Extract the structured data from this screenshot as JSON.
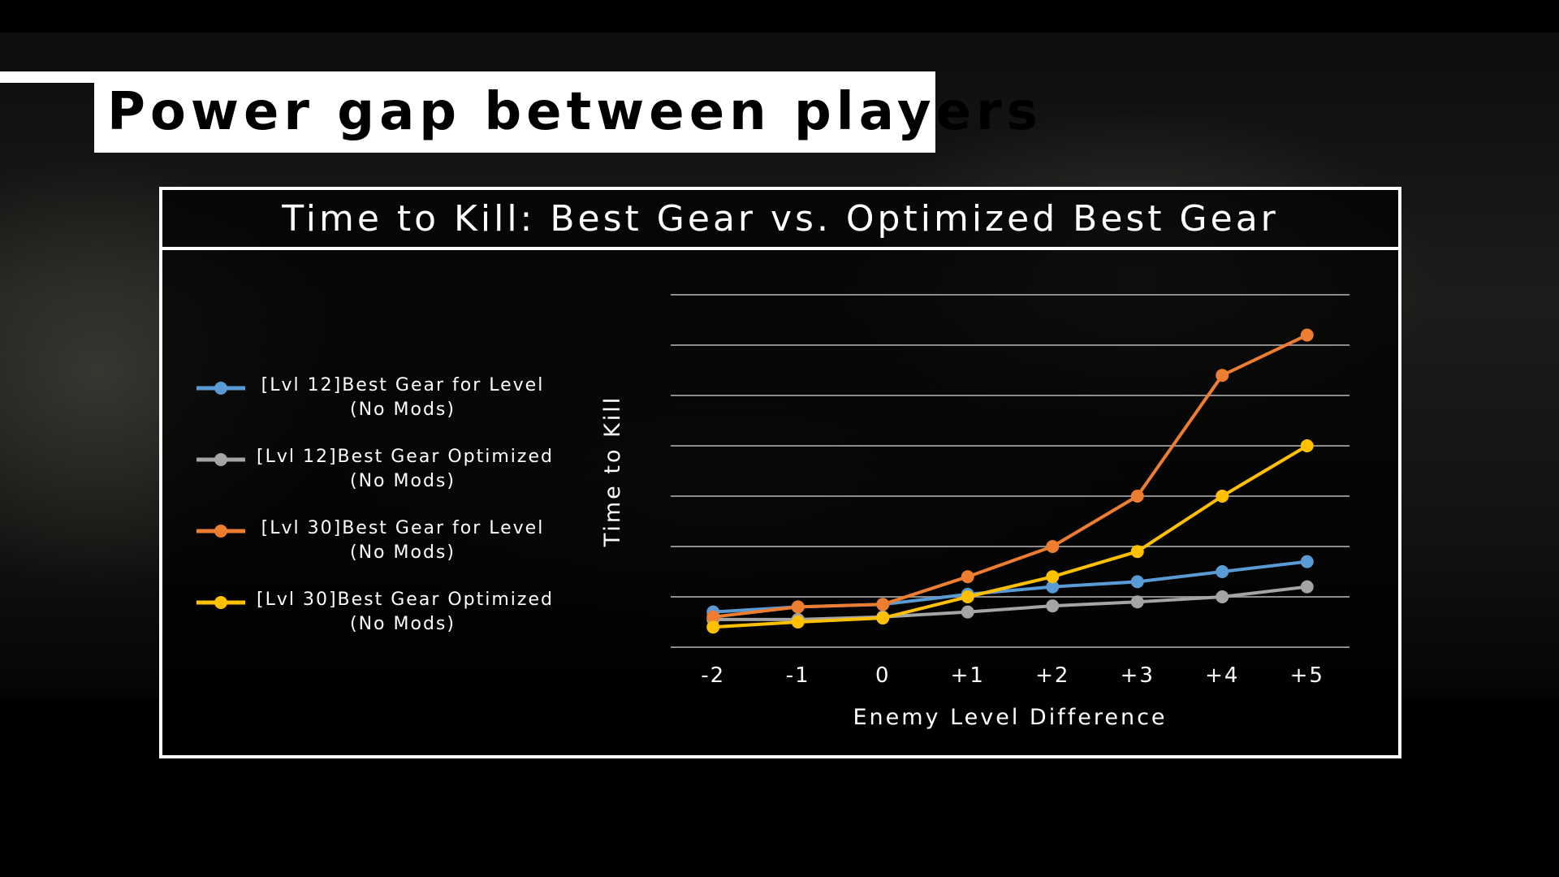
{
  "slide": {
    "title": "Power gap between players"
  },
  "chart_data": {
    "type": "line",
    "title": "Time to Kill: Best Gear vs. Optimized Best Gear",
    "xlabel": "Enemy Level Difference",
    "ylabel": "Time to Kill",
    "categories": [
      "-2",
      "-1",
      "0",
      "+1",
      "+2",
      "+3",
      "+4",
      "+5"
    ],
    "ylim": [
      0,
      7
    ],
    "y_tick_labels_shown": false,
    "grid": "horizontal",
    "legend_position": "left",
    "series": [
      {
        "name": "[Lvl 12]Best Gear for Level (No Mods)",
        "name_lines": [
          "[Lvl 12]Best Gear for Level",
          "(No Mods)"
        ],
        "color": "#5b9bd5",
        "values": [
          0.7,
          0.8,
          0.85,
          1.05,
          1.2,
          1.3,
          1.5,
          1.7
        ]
      },
      {
        "name": "[Lvl 12]Best Gear Optimized (No Mods)",
        "name_lines": [
          "[Lvl 12]Best Gear Optimized",
          "(No Mods)"
        ],
        "color": "#a5a5a5",
        "values": [
          0.55,
          0.55,
          0.6,
          0.7,
          0.82,
          0.9,
          1.0,
          1.2
        ]
      },
      {
        "name": "[Lvl 30]Best Gear for Level (No Mods)",
        "name_lines": [
          "[Lvl 30]Best Gear for Level",
          "(No Mods)"
        ],
        "color": "#ed7d31",
        "values": [
          0.6,
          0.8,
          0.85,
          1.4,
          2.0,
          3.0,
          5.4,
          6.2
        ]
      },
      {
        "name": "[Lvl 30]Best Gear Optimized (No Mods)",
        "name_lines": [
          "[Lvl 30]Best Gear Optimized",
          "(No Mods)"
        ],
        "color": "#ffc000",
        "values": [
          0.4,
          0.5,
          0.58,
          1.0,
          1.4,
          1.9,
          3.0,
          4.0
        ]
      }
    ]
  }
}
